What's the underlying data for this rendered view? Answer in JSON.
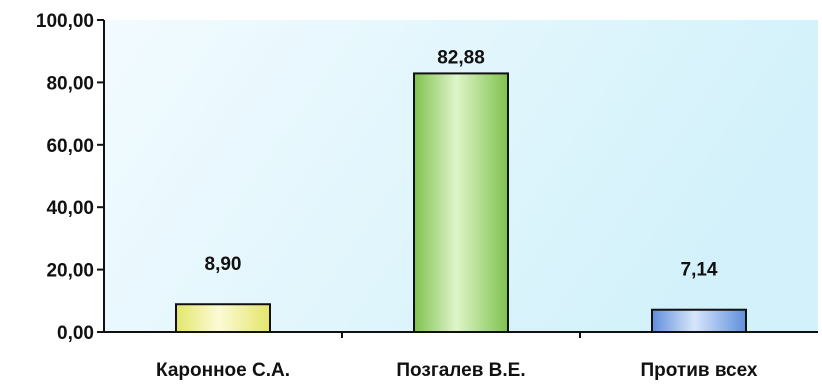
{
  "chart_data": {
    "type": "bar",
    "categories": [
      "Каронноe С.А.",
      "Позгалев В.Е.",
      "Против всех"
    ],
    "values": [
      8.9,
      82.88,
      7.14
    ],
    "data_labels": [
      "8,90",
      "82,88",
      "7,14"
    ],
    "ylim": [
      0,
      100
    ],
    "yticks": [
      0,
      20,
      40,
      60,
      80,
      100
    ],
    "ytick_labels": [
      "0,00",
      "20,00",
      "40,00",
      "60,00",
      "80,00",
      "100,00"
    ],
    "grid": false,
    "bar_colors": [
      [
        "#fbfbd6",
        "#e3e56a"
      ],
      [
        "#dff5c9",
        "#7fc24e"
      ],
      [
        "#d7e6fb",
        "#5f8fdc"
      ]
    ],
    "plot_background": [
      "#f2fbff",
      "#d2f1fa"
    ]
  }
}
